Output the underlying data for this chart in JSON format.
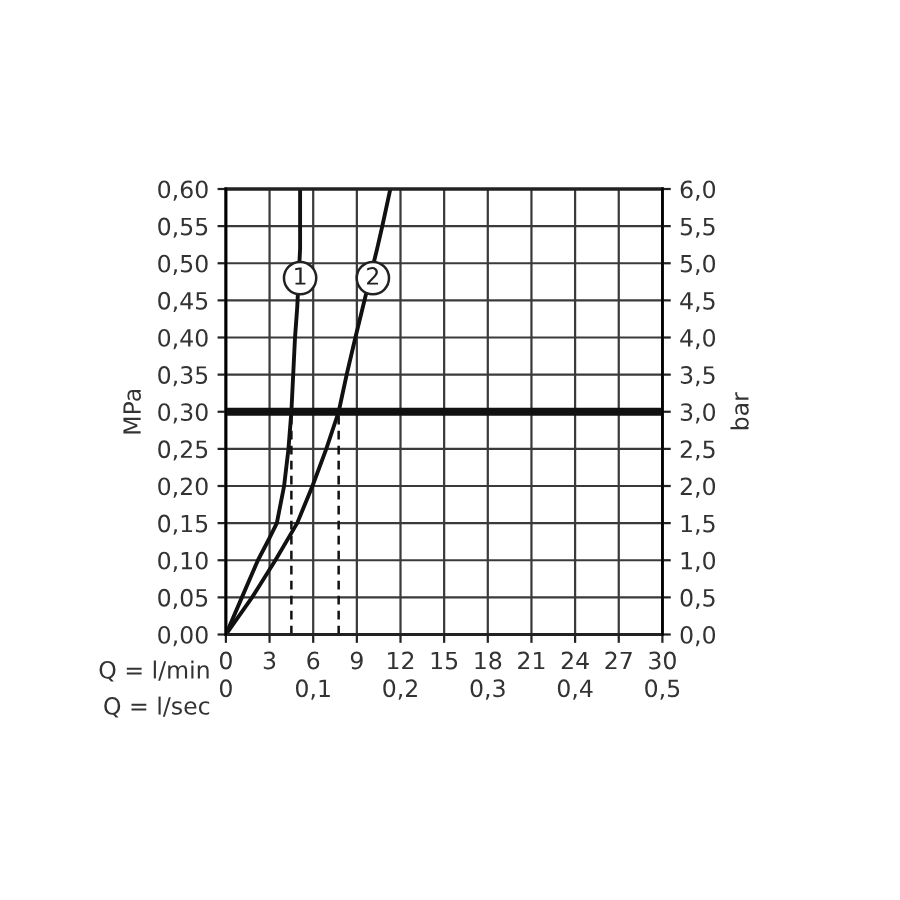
{
  "chart_data": {
    "type": "line",
    "xlabel": "Q = l/min",
    "x2label": "Q = l/sec",
    "ylabel": "MPa",
    "y2label": "bar",
    "series": [
      {
        "color": "#111111",
        "x": [
          0,
          1.1,
          2.2,
          3.0,
          3.5,
          4.0,
          4.3,
          4.5,
          4.75,
          4.9,
          5.1,
          5.1
        ],
        "values": [
          0,
          0.05,
          0.1,
          0.13,
          0.15,
          0.2,
          0.25,
          0.3,
          0.4,
          0.44,
          0.52,
          0.6
        ]
      },
      {
        "color": "#111111",
        "x": [
          0,
          1.8,
          3.4,
          4.9,
          5.95,
          6.9,
          7.75,
          8.3,
          8.9,
          9.4,
          10.4,
          10.75,
          11.3
        ],
        "values": [
          0,
          0.05,
          0.1,
          0.15,
          0.2,
          0.25,
          0.3,
          0.35,
          0.4,
          0.44,
          0.52,
          0.55,
          0.6
        ]
      },
      {
        "color": "#111111",
        "line_style": "dashed",
        "x": [
          4.5,
          4.5
        ],
        "values": [
          0,
          0.3
        ]
      },
      {
        "color": "#111111",
        "line_style": "dashed",
        "x": [
          7.75,
          7.75
        ],
        "values": [
          0,
          0.3
        ]
      }
    ],
    "annotations": [
      {
        "text": "1",
        "x": 5.1,
        "y": 0.48
      },
      {
        "text": "2",
        "x": 10.1,
        "y": 0.48
      }
    ],
    "ref_lines": [
      {
        "axis": "y",
        "value": 0.3,
        "color": "#111111"
      }
    ],
    "xlim": [
      0,
      30
    ],
    "xticks": [
      0,
      3,
      6,
      9,
      12,
      15,
      18,
      21,
      24,
      27,
      30
    ],
    "x2lim": [
      0,
      0.5
    ],
    "x2ticks": [
      0,
      {
        "value": 0.1,
        "label": "0,1"
      },
      {
        "value": 0.2,
        "label": "0,2"
      },
      {
        "value": 0.3,
        "label": "0,3"
      },
      {
        "value": 0.4,
        "label": "0,4"
      },
      {
        "value": 0.5,
        "label": "0,5"
      }
    ],
    "ylim": [
      0,
      0.6
    ],
    "yticks": [
      {
        "value": 0,
        "label": "0,00"
      },
      {
        "value": 0.05,
        "label": "0,05"
      },
      {
        "value": 0.1,
        "label": "0,10"
      },
      {
        "value": 0.15,
        "label": "0,15"
      },
      {
        "value": 0.2,
        "label": "0,20"
      },
      {
        "value": 0.25,
        "label": "0,25"
      },
      {
        "value": 0.3,
        "label": "0,30"
      },
      {
        "value": 0.35,
        "label": "0,35"
      },
      {
        "value": 0.4,
        "label": "0,40"
      },
      {
        "value": 0.45,
        "label": "0,45"
      },
      {
        "value": 0.5,
        "label": "0,50"
      },
      {
        "value": 0.55,
        "label": "0,55"
      },
      {
        "value": 0.6,
        "label": "0,60"
      }
    ],
    "y2lim": [
      0,
      6
    ],
    "y2ticks": [
      {
        "value": 0,
        "label": "0,0"
      },
      {
        "value": 0.5,
        "label": "0,5"
      },
      {
        "value": 1,
        "label": "1,0"
      },
      {
        "value": 1.5,
        "label": "1,5"
      },
      {
        "value": 2,
        "label": "2,0"
      },
      {
        "value": 2.5,
        "label": "2,5"
      },
      {
        "value": 3,
        "label": "3,0"
      },
      {
        "value": 3.5,
        "label": "3,5"
      },
      {
        "value": 4,
        "label": "4,0"
      },
      {
        "value": 4.5,
        "label": "4,5"
      },
      {
        "value": 5,
        "label": "5,0"
      },
      {
        "value": 5.5,
        "label": "5,5"
      },
      {
        "value": 6,
        "label": "6,0"
      }
    ],
    "grid": true,
    "legend": false,
    "marker": "none",
    "line_style": "solid"
  }
}
